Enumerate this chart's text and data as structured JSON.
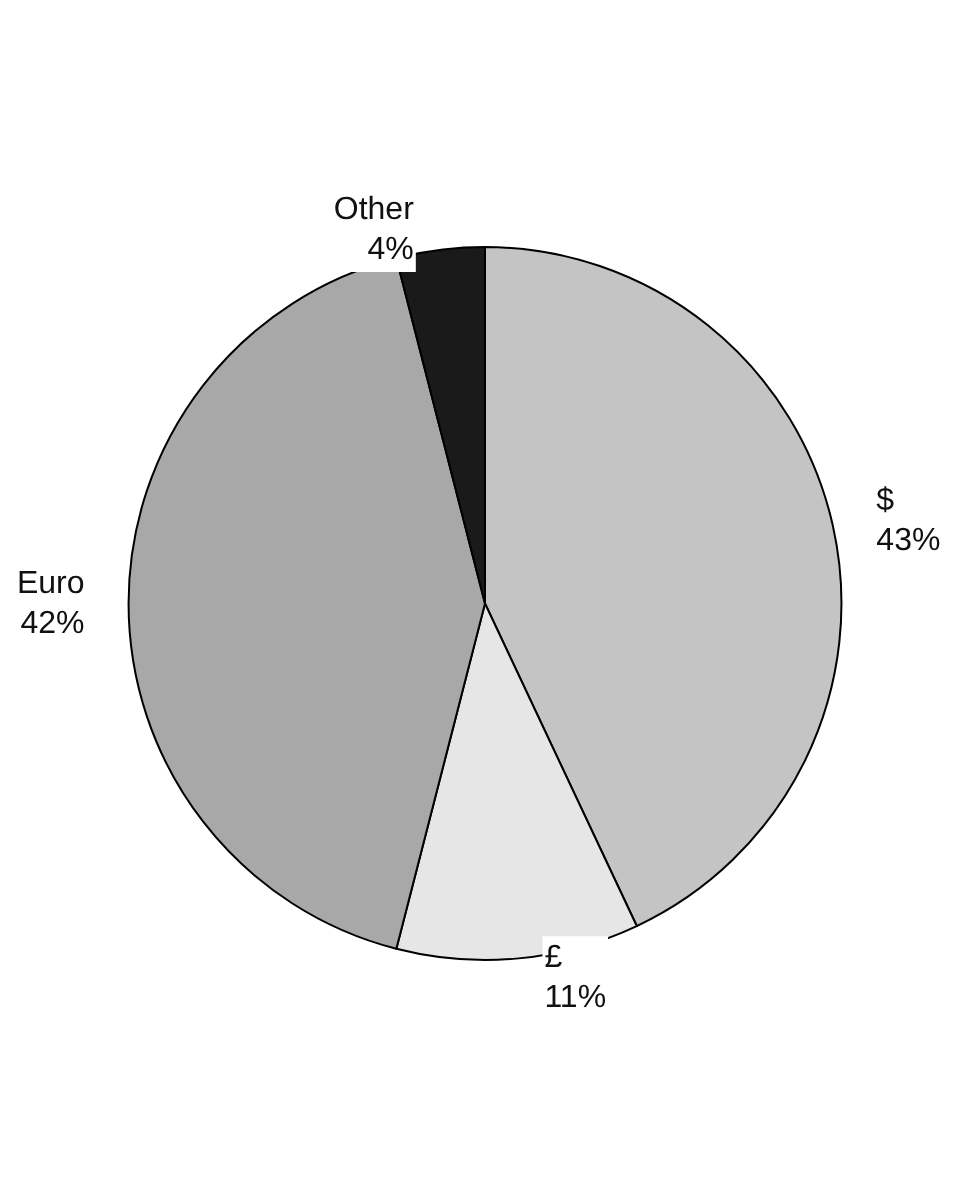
{
  "chart_data": {
    "type": "pie",
    "categories": [
      "$",
      "£",
      "Euro",
      "Other"
    ],
    "values": [
      43,
      11,
      42,
      4
    ],
    "value_labels": [
      "43%",
      "11%",
      "42%",
      "4%"
    ],
    "colors": [
      "#c4c4c4",
      "#e6e6e6",
      "#a8a8a8",
      "#1a1a1a"
    ],
    "legend": false
  }
}
